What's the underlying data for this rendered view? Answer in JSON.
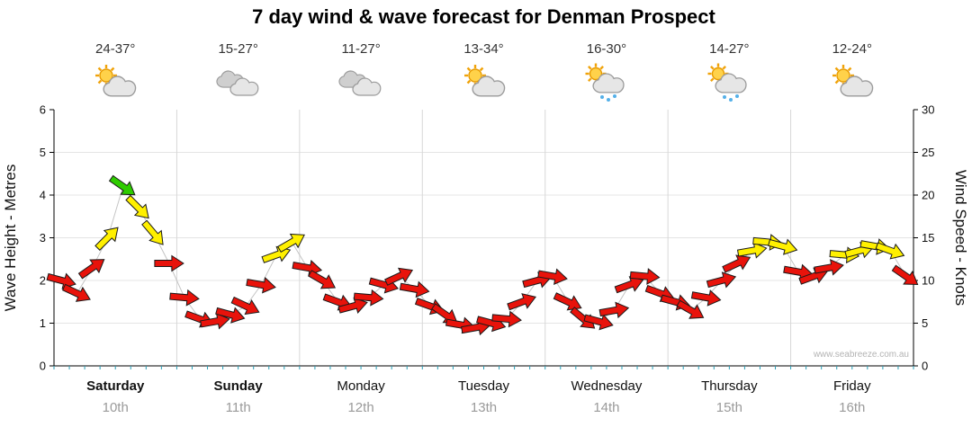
{
  "chart_data": {
    "type": "scatter",
    "title": "7 day wind & wave forecast for Denman Prospect",
    "watermark": "www.seabreeze.com.au",
    "left_axis": {
      "label": "Wave Height - Metres",
      "min": 0,
      "max": 6,
      "ticks": [
        0,
        1,
        2,
        3,
        4,
        5,
        6
      ]
    },
    "right_axis": {
      "label": "Wind Speed - Knots",
      "min": 0,
      "max": 30,
      "ticks": [
        0,
        5,
        10,
        15,
        20,
        25,
        30
      ]
    },
    "arrow_colors": {
      "red": "#e8130b",
      "yellow": "#fff000",
      "green": "#2ecc00"
    },
    "color_thresholds_knots": {
      "yellow_at": 13,
      "green_at": 20
    },
    "points_per_day": 8,
    "days": [
      {
        "name": "Saturday",
        "date": "10th",
        "temp_range": "24-37°",
        "icon": "sun-cloud",
        "bold": true
      },
      {
        "name": "Sunday",
        "date": "11th",
        "temp_range": "15-27°",
        "icon": "clouds",
        "bold": true
      },
      {
        "name": "Monday",
        "date": "12th",
        "temp_range": "11-27°",
        "icon": "clouds",
        "bold": false
      },
      {
        "name": "Tuesday",
        "date": "13th",
        "temp_range": "13-34°",
        "icon": "sun-cloud",
        "bold": false
      },
      {
        "name": "Wednesday",
        "date": "14th",
        "temp_range": "16-30°",
        "icon": "sun-cloud-rain",
        "bold": false
      },
      {
        "name": "Thursday",
        "date": "15th",
        "temp_range": "14-27°",
        "icon": "sun-cloud-rain",
        "bold": false
      },
      {
        "name": "Friday",
        "date": "16th",
        "temp_range": "12-24°",
        "icon": "sun-cloud",
        "bold": false
      }
    ],
    "wind_points": [
      {
        "knots": 10,
        "dir_deg": 15
      },
      {
        "knots": 8.5,
        "dir_deg": 25
      },
      {
        "knots": 11.5,
        "dir_deg": -35
      },
      {
        "knots": 15,
        "dir_deg": -45
      },
      {
        "knots": 21,
        "dir_deg": 35
      },
      {
        "knots": 18.5,
        "dir_deg": 45
      },
      {
        "knots": 15.5,
        "dir_deg": 50
      },
      {
        "knots": 12,
        "dir_deg": 0
      },
      {
        "knots": 8,
        "dir_deg": 5
      },
      {
        "knots": 5.5,
        "dir_deg": 20
      },
      {
        "knots": 5.2,
        "dir_deg": -10
      },
      {
        "knots": 6,
        "dir_deg": 15
      },
      {
        "knots": 7,
        "dir_deg": 25
      },
      {
        "knots": 9.5,
        "dir_deg": 10
      },
      {
        "knots": 13,
        "dir_deg": -20
      },
      {
        "knots": 14.5,
        "dir_deg": -30
      },
      {
        "knots": 11.5,
        "dir_deg": 10
      },
      {
        "knots": 10,
        "dir_deg": 30
      },
      {
        "knots": 7.5,
        "dir_deg": 20
      },
      {
        "knots": 7,
        "dir_deg": -15
      },
      {
        "knots": 8,
        "dir_deg": 5
      },
      {
        "knots": 9.5,
        "dir_deg": 15
      },
      {
        "knots": 10.5,
        "dir_deg": -25
      },
      {
        "knots": 9,
        "dir_deg": 10
      },
      {
        "knots": 7,
        "dir_deg": 20
      },
      {
        "knots": 6,
        "dir_deg": 35
      },
      {
        "knots": 4.8,
        "dir_deg": 10
      },
      {
        "knots": 4.5,
        "dir_deg": -10
      },
      {
        "knots": 5,
        "dir_deg": 15
      },
      {
        "knots": 5.5,
        "dir_deg": 5
      },
      {
        "knots": 7.5,
        "dir_deg": -20
      },
      {
        "knots": 10,
        "dir_deg": -15
      },
      {
        "knots": 10.5,
        "dir_deg": 10
      },
      {
        "knots": 7.5,
        "dir_deg": 25
      },
      {
        "knots": 5.5,
        "dir_deg": 40
      },
      {
        "knots": 5.2,
        "dir_deg": 15
      },
      {
        "knots": 6.5,
        "dir_deg": -10
      },
      {
        "knots": 9.5,
        "dir_deg": -20
      },
      {
        "knots": 10.5,
        "dir_deg": 5
      },
      {
        "knots": 8.5,
        "dir_deg": 20
      },
      {
        "knots": 7.5,
        "dir_deg": 15
      },
      {
        "knots": 6.5,
        "dir_deg": 30
      },
      {
        "knots": 8,
        "dir_deg": 10
      },
      {
        "knots": 10,
        "dir_deg": -15
      },
      {
        "knots": 12,
        "dir_deg": -25
      },
      {
        "knots": 13.5,
        "dir_deg": -10
      },
      {
        "knots": 14.5,
        "dir_deg": 5
      },
      {
        "knots": 14,
        "dir_deg": 15
      },
      {
        "knots": 11,
        "dir_deg": 10
      },
      {
        "knots": 10.5,
        "dir_deg": -20
      },
      {
        "knots": 11.5,
        "dir_deg": -10
      },
      {
        "knots": 13,
        "dir_deg": 5
      },
      {
        "knots": 13.5,
        "dir_deg": -15
      },
      {
        "knots": 14,
        "dir_deg": 10
      },
      {
        "knots": 13.5,
        "dir_deg": 20
      },
      {
        "knots": 10.5,
        "dir_deg": 35
      }
    ]
  }
}
